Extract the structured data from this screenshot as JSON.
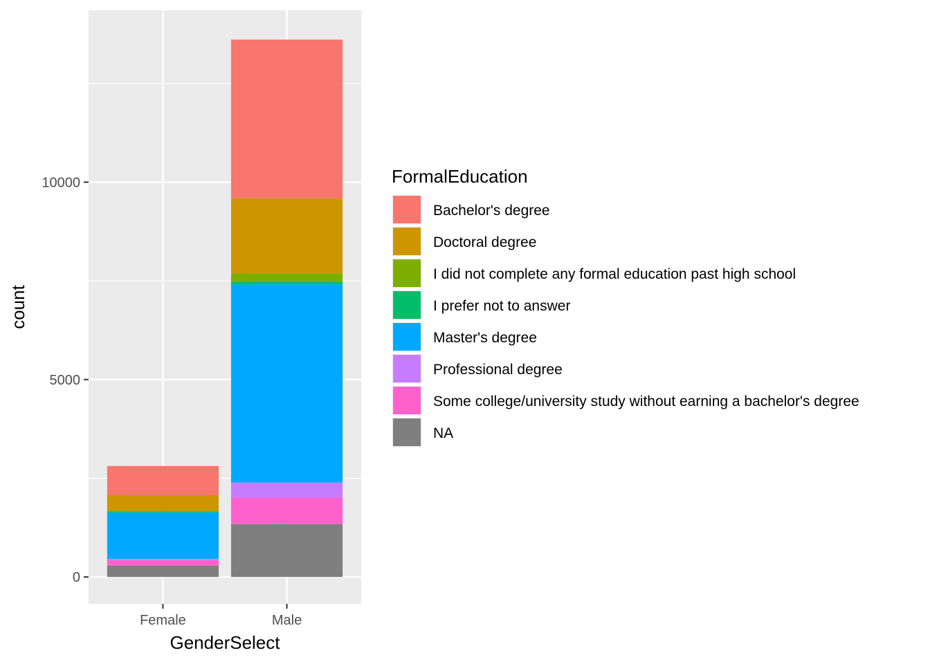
{
  "chart_data": {
    "type": "bar",
    "stacked": true,
    "categories": [
      "Female",
      "Male"
    ],
    "xlabel": "GenderSelect",
    "ylabel": "count",
    "y_ticks": [
      0,
      5000,
      10000
    ],
    "ylim": [
      -680,
      14350
    ],
    "grid": true,
    "legend_title": "FormalEducation",
    "legend_position": "right",
    "series": [
      {
        "name": "Bachelor's degree",
        "color": "#F8766D",
        "values": [
          740,
          4020
        ]
      },
      {
        "name": "Doctoral degree",
        "color": "#CD9600",
        "values": [
          390,
          1900
        ]
      },
      {
        "name": "I did not complete any formal education past high school",
        "color": "#7CAE00",
        "values": [
          30,
          210
        ]
      },
      {
        "name": "I prefer not to answer",
        "color": "#00BE67",
        "values": [
          20,
          70
        ]
      },
      {
        "name": "Master's degree",
        "color": "#00A9FF",
        "values": [
          1170,
          5020
        ]
      },
      {
        "name": "Professional degree",
        "color": "#C77CFF",
        "values": [
          30,
          380
        ]
      },
      {
        "name": "Some college/university study without earning a bachelor's degree",
        "color": "#FF61CC",
        "values": [
          140,
          670
        ]
      },
      {
        "name": "NA",
        "color": "#7F7F7F",
        "values": [
          290,
          1340
        ]
      }
    ]
  }
}
